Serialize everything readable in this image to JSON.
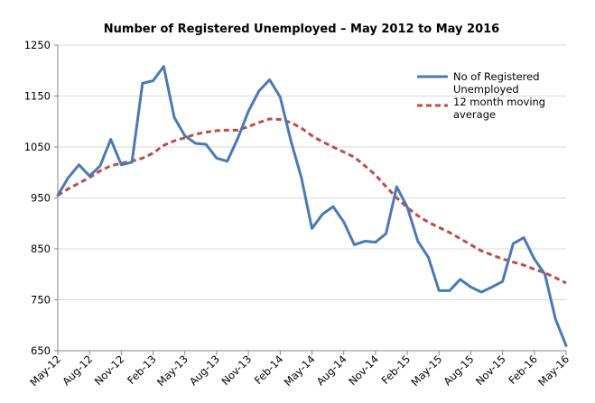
{
  "chart_data": {
    "type": "line",
    "title": "Number of Registered Unemployed – May 2012 to May 2016",
    "xlabel": "",
    "ylabel": "",
    "ylim": [
      650,
      1250
    ],
    "yticks": [
      650,
      750,
      850,
      950,
      1050,
      1150,
      1250
    ],
    "x": [
      "May-12",
      "Jun-12",
      "Jul-12",
      "Aug-12",
      "Sep-12",
      "Oct-12",
      "Nov-12",
      "Dec-12",
      "Jan-13",
      "Feb-13",
      "Mar-13",
      "Apr-13",
      "May-13",
      "Jun-13",
      "Jul-13",
      "Aug-13",
      "Sep-13",
      "Oct-13",
      "Nov-13",
      "Dec-13",
      "Jan-14",
      "Feb-14",
      "Mar-14",
      "Apr-14",
      "May-14",
      "Jun-14",
      "Jul-14",
      "Aug-14",
      "Sep-14",
      "Oct-14",
      "Nov-14",
      "Dec-14",
      "Jan-15",
      "Feb-15",
      "Mar-15",
      "Apr-15",
      "May-15",
      "Jun-15",
      "Jul-15",
      "Aug-15",
      "Sep-15",
      "Oct-15",
      "Nov-15",
      "Dec-15",
      "Jan-16",
      "Feb-16",
      "Mar-16",
      "Apr-16",
      "May-16"
    ],
    "tick_labels": [
      "May-12",
      "Aug-12",
      "Nov-12",
      "Feb-13",
      "May-13",
      "Aug-13",
      "Nov-13",
      "Feb-14",
      "May-14",
      "Aug-14",
      "Nov-14",
      "Feb-15",
      "May-15",
      "Aug-15",
      "Nov-15",
      "Feb-16",
      "May-16"
    ],
    "grid": true,
    "legend_position": "top-right",
    "series": [
      {
        "name": "No of Registered Unemployed",
        "color": "#4a7ab5",
        "style": "solid",
        "values": [
          955,
          990,
          1015,
          993,
          1013,
          1065,
          1015,
          1020,
          1175,
          1180,
          1208,
          1108,
          1072,
          1057,
          1055,
          1028,
          1022,
          1067,
          1120,
          1160,
          1182,
          1148,
          1063,
          990,
          890,
          918,
          933,
          903,
          858,
          865,
          863,
          880,
          972,
          932,
          865,
          833,
          768,
          768,
          790,
          775,
          765,
          775,
          786,
          860,
          872,
          830,
          800,
          712,
          660
        ]
      },
      {
        "name": "12 month moving average",
        "color": "#be4b48",
        "style": "dashed",
        "values": [
          955,
          968,
          979,
          990,
          1003,
          1013,
          1018,
          1022,
          1028,
          1038,
          1053,
          1062,
          1068,
          1075,
          1079,
          1082,
          1083,
          1083,
          1090,
          1098,
          1105,
          1104,
          1098,
          1087,
          1072,
          1060,
          1050,
          1040,
          1030,
          1013,
          995,
          972,
          950,
          931,
          915,
          902,
          892,
          882,
          870,
          858,
          846,
          838,
          830,
          824,
          818,
          810,
          803,
          793,
          783
        ]
      }
    ]
  }
}
